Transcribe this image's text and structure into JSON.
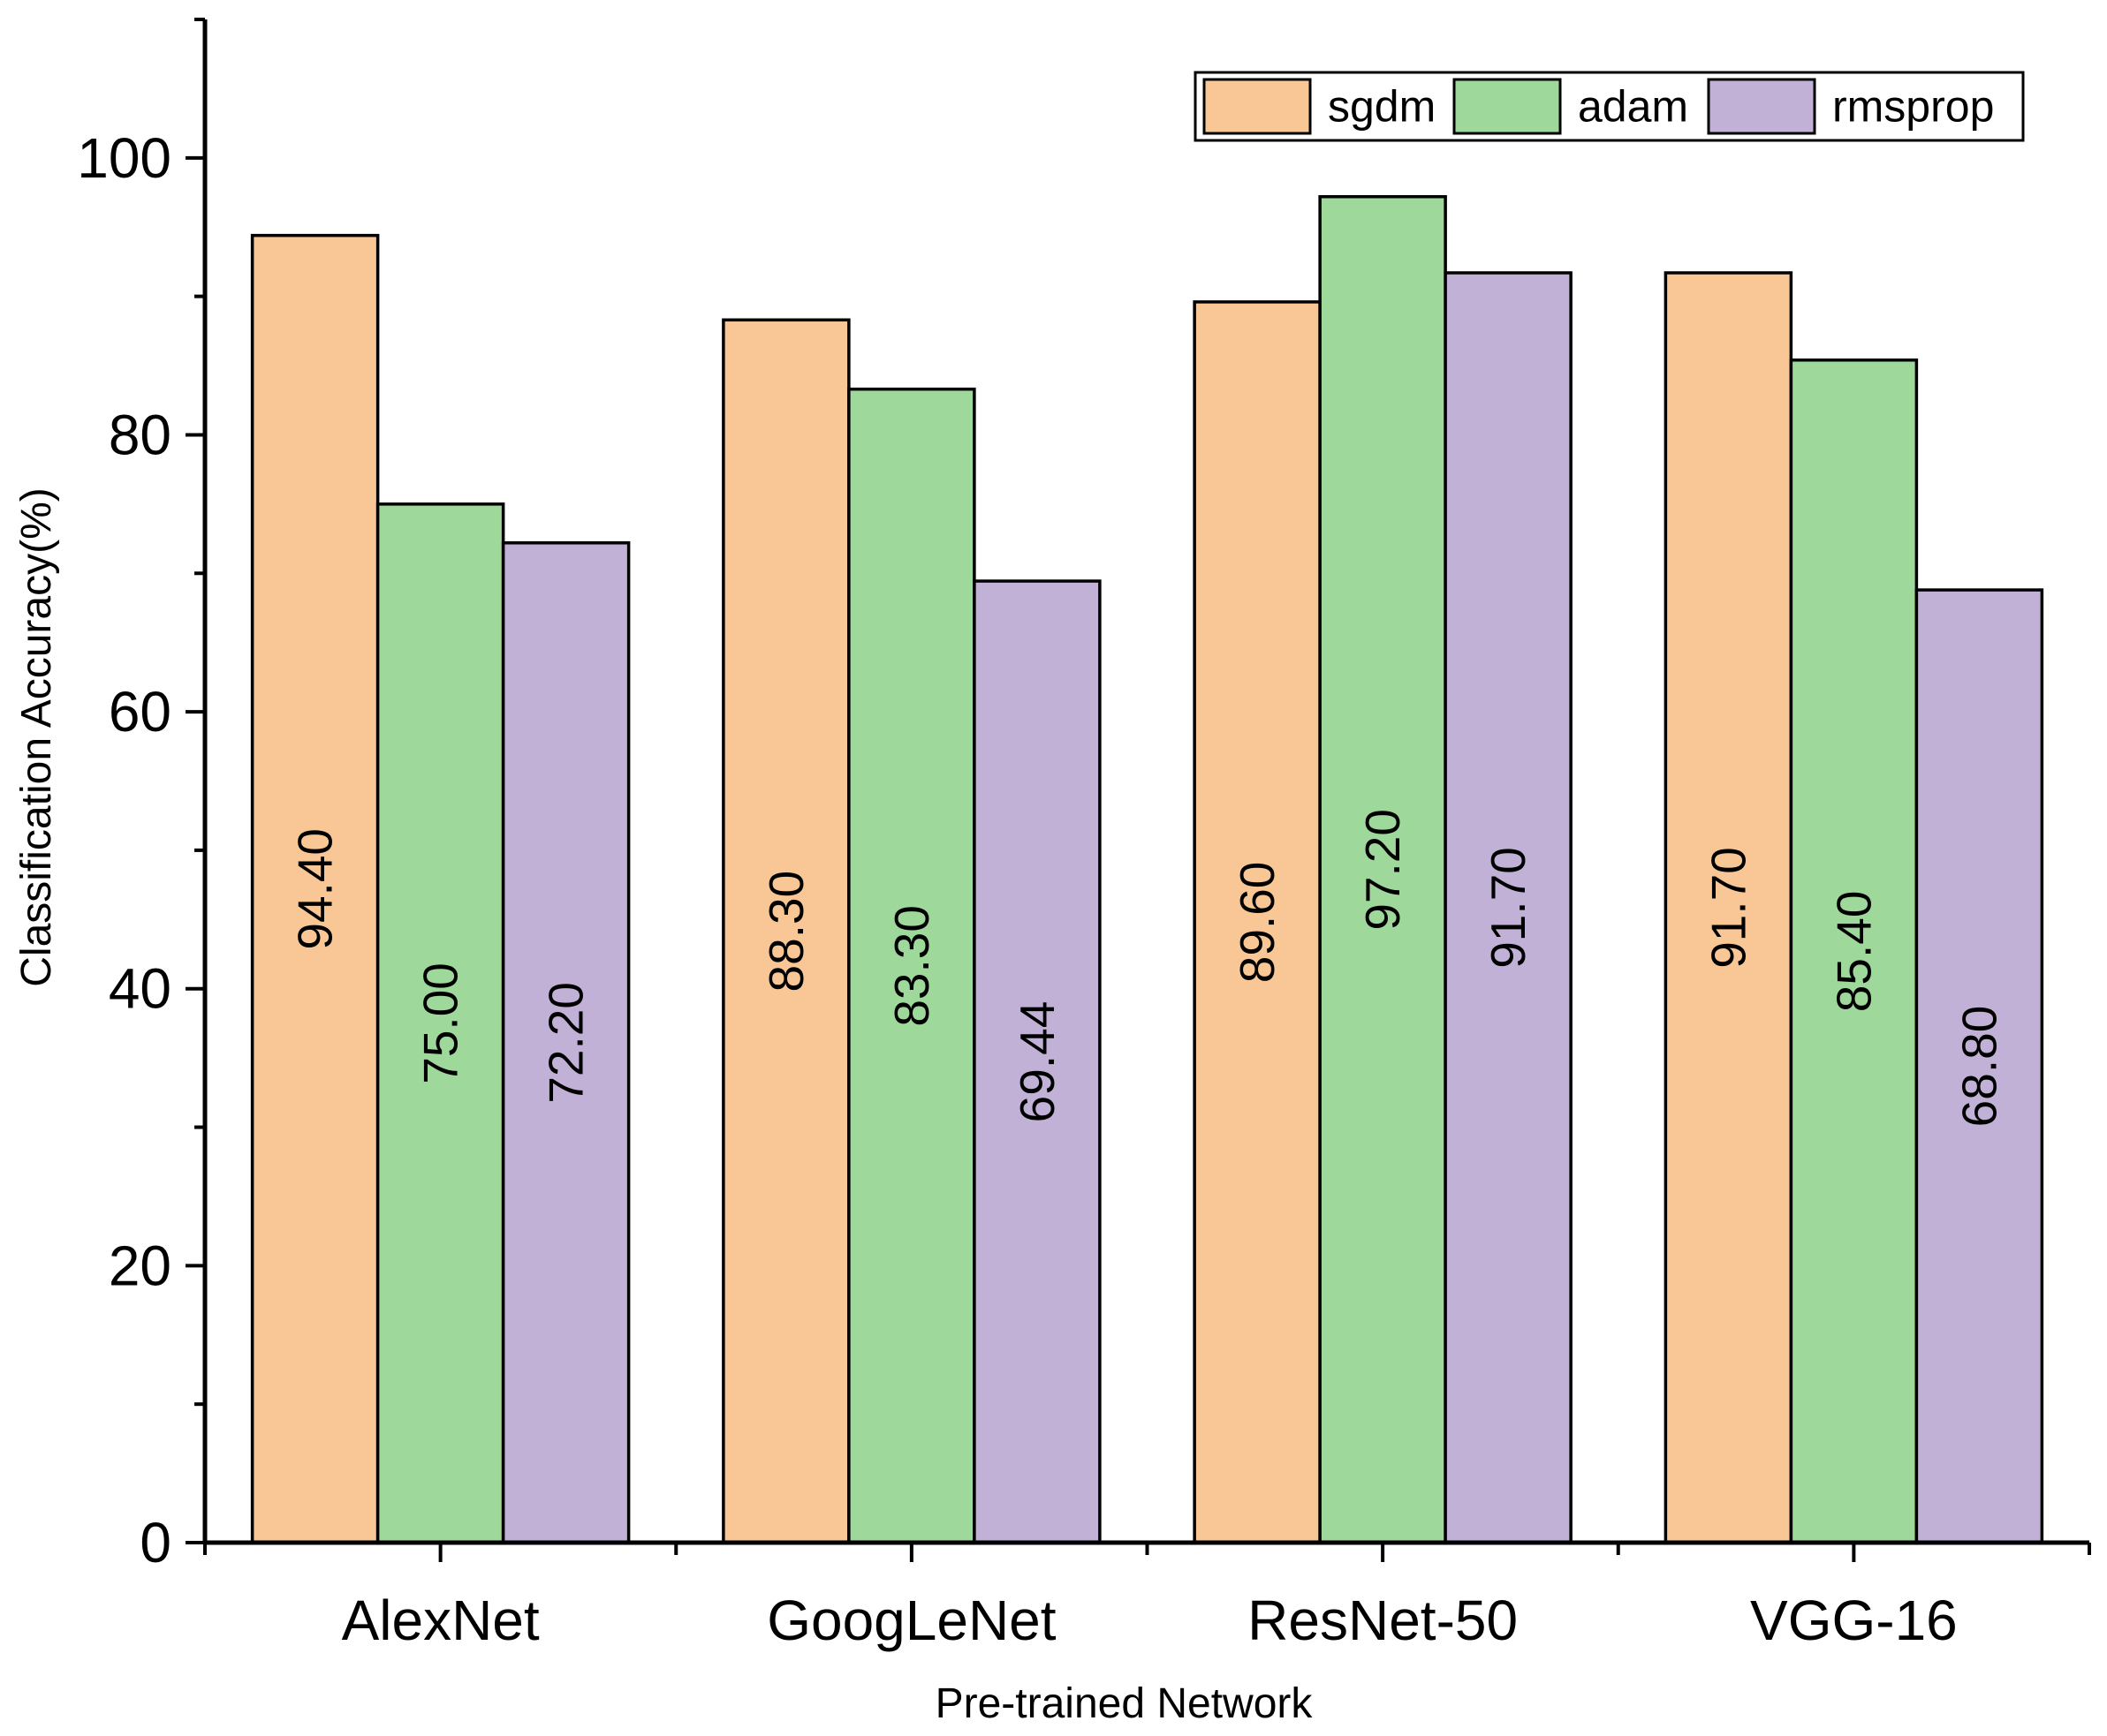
{
  "chart_data": {
    "type": "bar",
    "title": "",
    "xlabel": "Pre-trained Network",
    "ylabel": "Classification Accuracy(%)",
    "ylim": [
      0,
      110
    ],
    "yticks": [
      0,
      20,
      40,
      60,
      80,
      100
    ],
    "categories": [
      "AlexNet",
      "GoogLeNet",
      "ResNet-50",
      "VGG-16"
    ],
    "series": [
      {
        "name": "sgdm",
        "color": "#F9C795",
        "values": [
          94.4,
          88.3,
          89.6,
          91.7
        ],
        "labels": [
          "94.40",
          "88.30",
          "89.60",
          "91.70"
        ]
      },
      {
        "name": "adam",
        "color": "#9FD89B",
        "values": [
          75.0,
          83.3,
          97.2,
          85.4
        ],
        "labels": [
          "75.00",
          "83.30",
          "97.20",
          "85.40"
        ]
      },
      {
        "name": "rmsprop",
        "color": "#C1B1D7",
        "values": [
          72.2,
          69.44,
          91.7,
          68.8
        ],
        "labels": [
          "72.20",
          "69.44",
          "91.70",
          "68.80"
        ]
      }
    ],
    "legend": {
      "position": "top-right",
      "entries": [
        "sgdm",
        "adam",
        "rmsprop"
      ]
    },
    "grid": false
  }
}
